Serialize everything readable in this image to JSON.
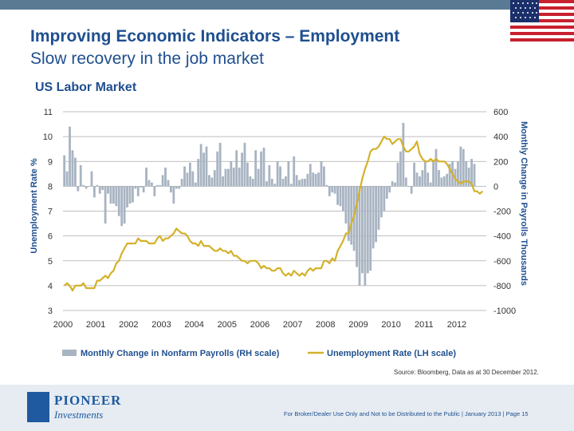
{
  "header": {
    "title": "Improving Economic Indicators – Employment",
    "subtitle": "Slow recovery in the job market",
    "section_title": "US Labor Market"
  },
  "colors": {
    "bar": "#a8b4c2",
    "line": "#d4b12a",
    "title": "#1f4f8f",
    "grid": "#aaaaaa"
  },
  "chart_data": {
    "type": "bar",
    "title": "US Labor Market",
    "x_ticks": [
      "2000",
      "2001",
      "2002",
      "2003",
      "2004",
      "2005",
      "2006",
      "2007",
      "2008",
      "2009",
      "2010",
      "2011",
      "2012"
    ],
    "x_range": [
      2000,
      2012.9
    ],
    "left_axis": {
      "label": "Unemployment Rate %",
      "ticks": [
        "11",
        "10",
        "9",
        "8",
        "7",
        "6",
        "5",
        "4",
        "3"
      ],
      "range": [
        3,
        11
      ]
    },
    "right_axis": {
      "label": "Monthly Change in Payrolls Thousands",
      "ticks": [
        "600",
        "400",
        "200",
        "0",
        "-200",
        "-400",
        "-600",
        "-800",
        "-1000"
      ],
      "range": [
        -1000,
        600
      ]
    },
    "legend": [
      "Monthly Change in Nonfarm Payrolls (RH scale)",
      "Unemployment Rate (LH scale)"
    ],
    "series": [
      {
        "name": "Monthly Change in Nonfarm Payrolls (RH scale)",
        "axis": "right",
        "type": "bar",
        "start": 2000,
        "step": 0.0833,
        "values": [
          250,
          120,
          480,
          290,
          230,
          -40,
          170,
          10,
          -20,
          0,
          120,
          -90,
          10,
          -60,
          -30,
          -300,
          -60,
          -140,
          -140,
          -160,
          -240,
          -320,
          -300,
          -170,
          -140,
          -130,
          -20,
          -80,
          -10,
          -50,
          150,
          50,
          30,
          -80,
          10,
          10,
          90,
          150,
          50,
          -50,
          -140,
          -20,
          -20,
          60,
          160,
          110,
          190,
          120,
          30,
          220,
          340,
          270,
          320,
          90,
          70,
          130,
          280,
          350,
          80,
          140,
          140,
          200,
          150,
          290,
          150,
          270,
          350,
          190,
          80,
          60,
          290,
          140,
          280,
          310,
          40,
          170,
          60,
          20,
          200,
          160,
          60,
          80,
          200,
          20,
          240,
          90,
          50,
          60,
          60,
          100,
          180,
          110,
          100,
          110,
          200,
          160,
          10,
          -80,
          -50,
          -60,
          -150,
          -160,
          -200,
          -300,
          -440,
          -470,
          -520,
          -650,
          -800,
          -700,
          -800,
          -700,
          -680,
          -500,
          -450,
          -350,
          -250,
          -200,
          -100,
          -50,
          40,
          30,
          190,
          280,
          510,
          70,
          0,
          -60,
          190,
          110,
          80,
          130,
          200,
          110,
          30,
          200,
          300,
          130,
          70,
          80,
          100,
          180,
          200,
          140,
          200,
          320,
          300,
          200,
          150,
          220,
          180
        ]
      },
      {
        "name": "Unemployment Rate (LH scale)",
        "axis": "left",
        "type": "line",
        "start": 2000,
        "step": 0.0833,
        "values": [
          4.0,
          4.1,
          4.0,
          3.8,
          4.0,
          4.0,
          4.0,
          4.1,
          3.9,
          3.9,
          3.9,
          3.9,
          4.2,
          4.2,
          4.3,
          4.4,
          4.3,
          4.5,
          4.6,
          4.9,
          5.0,
          5.3,
          5.5,
          5.7,
          5.7,
          5.7,
          5.7,
          5.9,
          5.8,
          5.8,
          5.8,
          5.7,
          5.7,
          5.7,
          5.9,
          6.0,
          5.8,
          5.9,
          5.9,
          6.0,
          6.1,
          6.3,
          6.2,
          6.1,
          6.1,
          6.0,
          5.8,
          5.7,
          5.7,
          5.6,
          5.8,
          5.6,
          5.6,
          5.6,
          5.5,
          5.4,
          5.4,
          5.5,
          5.4,
          5.4,
          5.3,
          5.4,
          5.2,
          5.2,
          5.1,
          5.0,
          5.0,
          4.9,
          5.0,
          5.0,
          5.0,
          4.9,
          4.7,
          4.8,
          4.7,
          4.7,
          4.6,
          4.6,
          4.7,
          4.7,
          4.5,
          4.4,
          4.5,
          4.4,
          4.6,
          4.5,
          4.4,
          4.5,
          4.4,
          4.6,
          4.7,
          4.6,
          4.7,
          4.7,
          4.7,
          5.0,
          5.0,
          4.9,
          5.1,
          5.0,
          5.4,
          5.6,
          5.8,
          6.1,
          6.1,
          6.5,
          6.8,
          7.3,
          7.8,
          8.3,
          8.7,
          9.0,
          9.4,
          9.5,
          9.5,
          9.6,
          9.8,
          10.0,
          9.9,
          9.9,
          9.7,
          9.8,
          9.9,
          9.9,
          9.6,
          9.4,
          9.4,
          9.5,
          9.6,
          9.8,
          9.3,
          9.1,
          9.0,
          9.0,
          9.1,
          9.0,
          9.1,
          9.0,
          9.0,
          9.0,
          8.9,
          8.7,
          8.5,
          8.3,
          8.2,
          8.1,
          8.2,
          8.2,
          8.2,
          8.1,
          7.8,
          7.8,
          7.7,
          7.8
        ]
      }
    ]
  },
  "source": "Source: Bloomberg, Data as at 30 December 2012.",
  "footer": {
    "logo_line1": "PIONEER",
    "logo_line2": "Investments",
    "disclaimer": "For Broker/Dealer Use Only and Not to be Distributed to the Public  |  January 2013  |  Page 15"
  }
}
